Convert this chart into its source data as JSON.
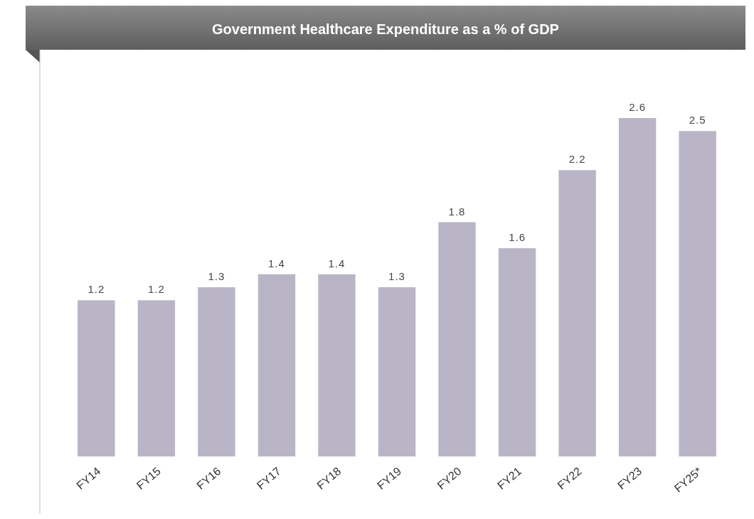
{
  "chart_data": {
    "type": "bar",
    "title": "Government Healthcare Expenditure as a % of GDP",
    "categories": [
      "FY14",
      "FY15",
      "FY16",
      "FY17",
      "FY18",
      "FY19",
      "FY20",
      "FY21",
      "FY22",
      "FY23",
      "FY25*"
    ],
    "values": [
      1.2,
      1.2,
      1.3,
      1.4,
      1.4,
      1.3,
      1.8,
      1.6,
      2.2,
      2.6,
      2.5
    ],
    "color": "#b9b5c6",
    "data_labels": true
  }
}
